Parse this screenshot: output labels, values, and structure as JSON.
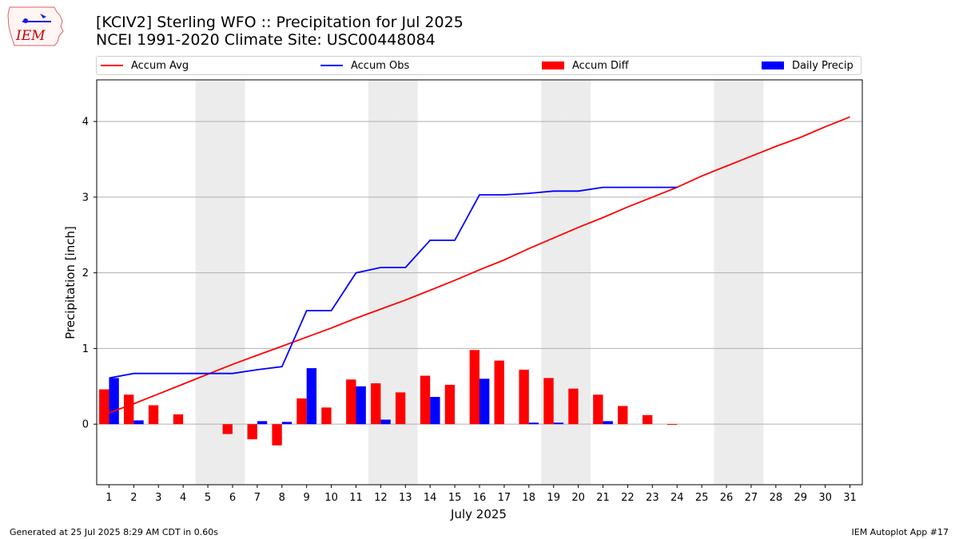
{
  "header": {
    "title_line1": "[KCIV2] Sterling WFO :: Precipitation for Jul 2025",
    "title_line2": "NCEI 1991-2020 Climate Site: USC00448084"
  },
  "logo": {
    "text": "IEM"
  },
  "footer": {
    "generated": "Generated at 25 Jul 2025 8:29 AM CDT in 0.60s",
    "app": "IEM Autoplot App #17"
  },
  "colors": {
    "avg": "#ff0000",
    "obs": "#0000ff",
    "diff": "#ff0000",
    "daily": "#0000ff",
    "weekend": "#ececec",
    "grid": "#b0b0b0"
  },
  "chart_data": {
    "type": "bar",
    "xlabel": "July 2025",
    "ylabel": "Precipitation [inch]",
    "ylim": [
      -0.8,
      4.55
    ],
    "xlim": [
      0.5,
      31.5
    ],
    "y_ticks": [
      0,
      1,
      2,
      3,
      4
    ],
    "x_ticks": [
      1,
      2,
      3,
      4,
      5,
      6,
      7,
      8,
      9,
      10,
      11,
      12,
      13,
      14,
      15,
      16,
      17,
      18,
      19,
      20,
      21,
      22,
      23,
      24,
      25,
      26,
      27,
      28,
      29,
      30,
      31
    ],
    "grid": "horizontal",
    "legend": {
      "placement": "top",
      "entries": [
        "Accum Avg",
        "Accum Obs",
        "Accum Diff",
        "Daily Precip"
      ]
    },
    "shaded_days": [
      5,
      6,
      12,
      13,
      19,
      20,
      26,
      27
    ],
    "series": [
      {
        "name": "Accum Avg",
        "type": "line",
        "x": [
          1,
          2,
          3,
          4,
          5,
          6,
          7,
          8,
          9,
          10,
          11,
          12,
          13,
          14,
          15,
          16,
          17,
          18,
          19,
          20,
          21,
          22,
          23,
          24,
          25,
          26,
          27,
          28,
          29,
          30,
          31
        ],
        "values": [
          0.15,
          0.27,
          0.4,
          0.53,
          0.66,
          0.79,
          0.91,
          1.03,
          1.15,
          1.27,
          1.4,
          1.52,
          1.64,
          1.77,
          1.9,
          2.04,
          2.17,
          2.32,
          2.46,
          2.6,
          2.73,
          2.87,
          3.0,
          3.13,
          3.28,
          3.41,
          3.54,
          3.67,
          3.79,
          3.93,
          4.06
        ]
      },
      {
        "name": "Accum Obs",
        "type": "line",
        "x": [
          1,
          2,
          3,
          4,
          5,
          6,
          7,
          8,
          9,
          10,
          11,
          12,
          13,
          14,
          15,
          16,
          17,
          18,
          19,
          20,
          21,
          22,
          23,
          24
        ],
        "values": [
          0.61,
          0.67,
          0.67,
          0.67,
          0.67,
          0.67,
          0.72,
          0.76,
          1.5,
          1.5,
          2.0,
          2.07,
          2.07,
          2.43,
          2.43,
          3.03,
          3.03,
          3.05,
          3.08,
          3.08,
          3.13,
          3.13,
          3.13,
          3.13
        ]
      },
      {
        "name": "Accum Diff",
        "type": "bar",
        "x": [
          1,
          2,
          3,
          4,
          5,
          6,
          7,
          8,
          9,
          10,
          11,
          12,
          13,
          14,
          15,
          16,
          17,
          18,
          19,
          20,
          21,
          22,
          23,
          24
        ],
        "values": [
          0.46,
          0.39,
          0.25,
          0.13,
          0.0,
          -0.13,
          -0.2,
          -0.28,
          0.34,
          0.22,
          0.59,
          0.54,
          0.42,
          0.64,
          0.52,
          0.98,
          0.84,
          0.72,
          0.61,
          0.47,
          0.39,
          0.24,
          0.12,
          -0.01
        ]
      },
      {
        "name": "Daily Precip",
        "type": "bar",
        "x": [
          1,
          2,
          3,
          4,
          5,
          6,
          7,
          8,
          9,
          10,
          11,
          12,
          13,
          14,
          15,
          16,
          17,
          18,
          19,
          20,
          21,
          22,
          23,
          24
        ],
        "values": [
          0.61,
          0.05,
          0.0,
          0.0,
          0.0,
          0.0,
          0.04,
          0.03,
          0.74,
          0.0,
          0.5,
          0.06,
          0.0,
          0.36,
          0.0,
          0.6,
          0.0,
          0.02,
          0.02,
          0.0,
          0.04,
          0.0,
          0.0,
          0.0
        ]
      }
    ]
  }
}
